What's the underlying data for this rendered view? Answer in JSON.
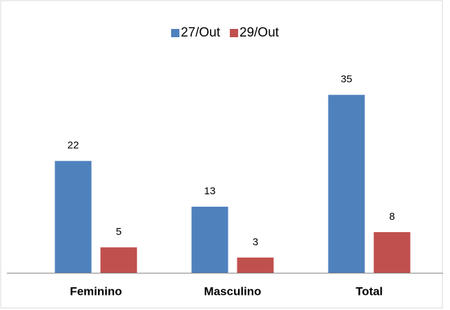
{
  "chart_data": {
    "type": "bar",
    "categories": [
      "Feminino",
      "Masculino",
      "Total"
    ],
    "series": [
      {
        "name": "27/Out",
        "color": "#4f81bd",
        "values": [
          22,
          13,
          35
        ]
      },
      {
        "name": "29/Out",
        "color": "#c0504d",
        "values": [
          5,
          3,
          8
        ]
      }
    ],
    "legend": "top"
  }
}
